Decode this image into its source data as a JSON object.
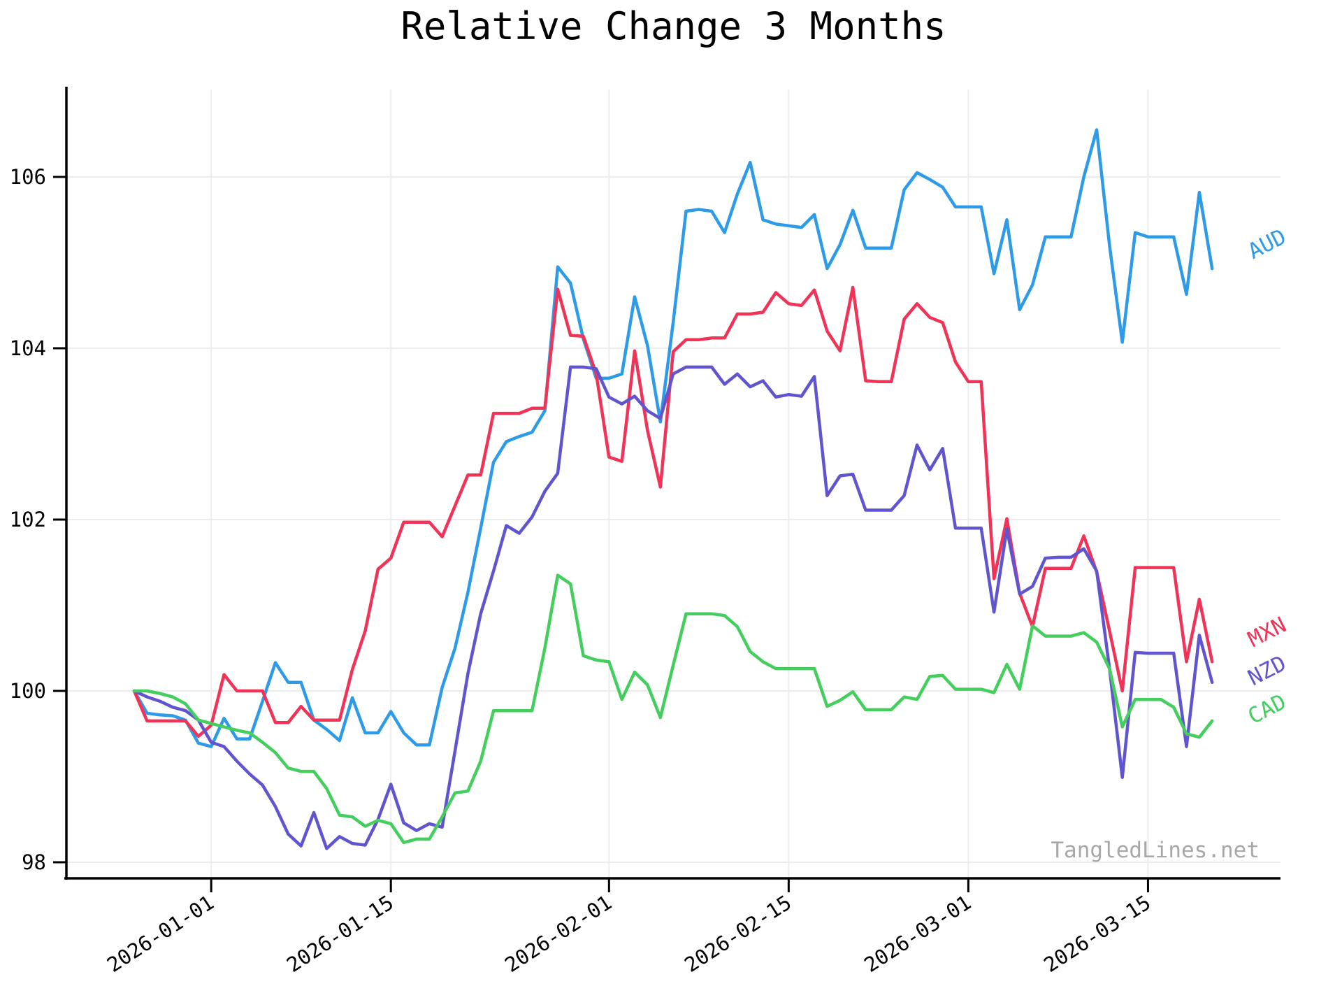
{
  "watermark": {
    "text": "TangledLines.net",
    "color": "#a8a8a8"
  },
  "chart_data": {
    "type": "line",
    "title": "Relative Change 3 Months",
    "xlabel": "",
    "ylabel": "",
    "grid": true,
    "legend_position": "line-end-right",
    "x_axis": {
      "start_date": "2025-12-26",
      "n_points": 85,
      "tick_days": [
        6,
        20,
        37,
        51,
        65,
        79
      ],
      "tick_labels": [
        "2026-01-01",
        "2026-01-15",
        "2026-02-01",
        "2026-02-15",
        "2026-03-01",
        "2026-03-15"
      ]
    },
    "y_axis": {
      "ticks": [
        98,
        100,
        102,
        104,
        106
      ],
      "tick_labels": [
        "98",
        "100",
        "102",
        "104",
        "106"
      ],
      "range": [
        97.8,
        107.0
      ]
    },
    "series": [
      {
        "name": "AUD",
        "color": "#2E9BE8",
        "values": [
          100.0,
          99.74,
          99.72,
          99.71,
          99.66,
          99.39,
          99.35,
          99.68,
          99.44,
          99.44,
          99.88,
          100.33,
          100.1,
          100.1,
          99.66,
          99.55,
          99.42,
          99.92,
          99.51,
          99.51,
          99.76,
          99.51,
          99.37,
          99.37,
          100.04,
          100.5,
          101.15,
          101.9,
          102.67,
          102.91,
          102.97,
          103.02,
          103.27,
          104.95,
          104.76,
          104.11,
          103.65,
          103.65,
          103.7,
          104.6,
          104.03,
          103.14,
          104.3,
          105.6,
          105.62,
          105.6,
          105.35,
          105.8,
          106.17,
          105.5,
          105.45,
          105.43,
          105.41,
          105.56,
          104.93,
          105.21,
          105.61,
          105.17,
          105.17,
          105.17,
          105.85,
          106.05,
          105.97,
          105.88,
          105.65,
          105.65,
          105.65,
          104.87,
          105.5,
          104.45,
          104.74,
          105.3,
          105.3,
          105.3,
          106.0,
          106.55,
          105.2,
          104.07,
          105.35,
          105.3,
          105.3,
          105.3,
          104.63,
          105.82,
          104.93
        ]
      },
      {
        "name": "MXN",
        "color": "#F03357",
        "values": [
          100.0,
          99.65,
          99.65,
          99.65,
          99.65,
          99.47,
          99.6,
          100.19,
          100.0,
          100.0,
          100.0,
          99.63,
          99.63,
          99.82,
          99.66,
          99.66,
          99.66,
          100.25,
          100.7,
          101.42,
          101.55,
          101.97,
          101.97,
          101.97,
          101.8,
          102.16,
          102.52,
          102.52,
          103.24,
          103.24,
          103.24,
          103.3,
          103.3,
          104.69,
          104.15,
          104.14,
          103.7,
          102.73,
          102.68,
          103.97,
          103.04,
          102.38,
          103.96,
          104.1,
          104.1,
          104.12,
          104.12,
          104.4,
          104.4,
          104.42,
          104.65,
          104.52,
          104.5,
          104.68,
          104.2,
          103.97,
          104.71,
          103.62,
          103.61,
          103.61,
          104.34,
          104.52,
          104.36,
          104.3,
          103.84,
          103.61,
          103.61,
          101.31,
          102.01,
          101.14,
          100.75,
          101.43,
          101.43,
          101.43,
          101.81,
          101.39,
          100.7,
          100.0,
          101.44,
          101.44,
          101.44,
          101.44,
          100.34,
          101.07,
          100.34
        ]
      },
      {
        "name": "NZD",
        "color": "#6055CE",
        "values": [
          100.0,
          99.93,
          99.88,
          99.81,
          99.77,
          99.66,
          99.4,
          99.35,
          99.18,
          99.03,
          98.9,
          98.65,
          98.33,
          98.19,
          98.58,
          98.16,
          98.3,
          98.22,
          98.2,
          98.5,
          98.91,
          98.46,
          98.37,
          98.45,
          98.41,
          99.3,
          100.2,
          100.9,
          101.4,
          101.93,
          101.84,
          102.03,
          102.33,
          102.54,
          103.78,
          103.78,
          103.76,
          103.43,
          103.35,
          103.44,
          103.27,
          103.18,
          103.7,
          103.78,
          103.78,
          103.78,
          103.58,
          103.7,
          103.55,
          103.62,
          103.43,
          103.46,
          103.44,
          103.67,
          102.28,
          102.51,
          102.53,
          102.11,
          102.11,
          102.11,
          102.28,
          102.87,
          102.58,
          102.83,
          101.9,
          101.9,
          101.9,
          100.92,
          101.89,
          101.13,
          101.22,
          101.55,
          101.56,
          101.56,
          101.66,
          101.4,
          100.26,
          98.99,
          100.45,
          100.44,
          100.44,
          100.44,
          99.35,
          100.65,
          100.1
        ]
      },
      {
        "name": "CAD",
        "color": "#44CE5E",
        "values": [
          100.0,
          100.0,
          99.97,
          99.93,
          99.85,
          99.66,
          99.62,
          99.58,
          99.54,
          99.51,
          99.4,
          99.28,
          99.1,
          99.06,
          99.06,
          98.86,
          98.55,
          98.53,
          98.42,
          98.49,
          98.45,
          98.23,
          98.27,
          98.27,
          98.53,
          98.81,
          98.83,
          99.18,
          99.77,
          99.77,
          99.77,
          99.77,
          100.5,
          101.35,
          101.25,
          100.41,
          100.36,
          100.34,
          99.9,
          100.22,
          100.07,
          99.69,
          100.3,
          100.9,
          100.9,
          100.9,
          100.88,
          100.75,
          100.46,
          100.34,
          100.26,
          100.26,
          100.26,
          100.26,
          99.82,
          99.89,
          99.99,
          99.78,
          99.78,
          99.78,
          99.93,
          99.9,
          100.17,
          100.18,
          100.02,
          100.02,
          100.02,
          99.98,
          100.31,
          100.02,
          100.76,
          100.64,
          100.64,
          100.64,
          100.68,
          100.57,
          100.26,
          99.58,
          99.9,
          99.9,
          99.9,
          99.81,
          99.5,
          99.46,
          99.65
        ]
      }
    ]
  }
}
